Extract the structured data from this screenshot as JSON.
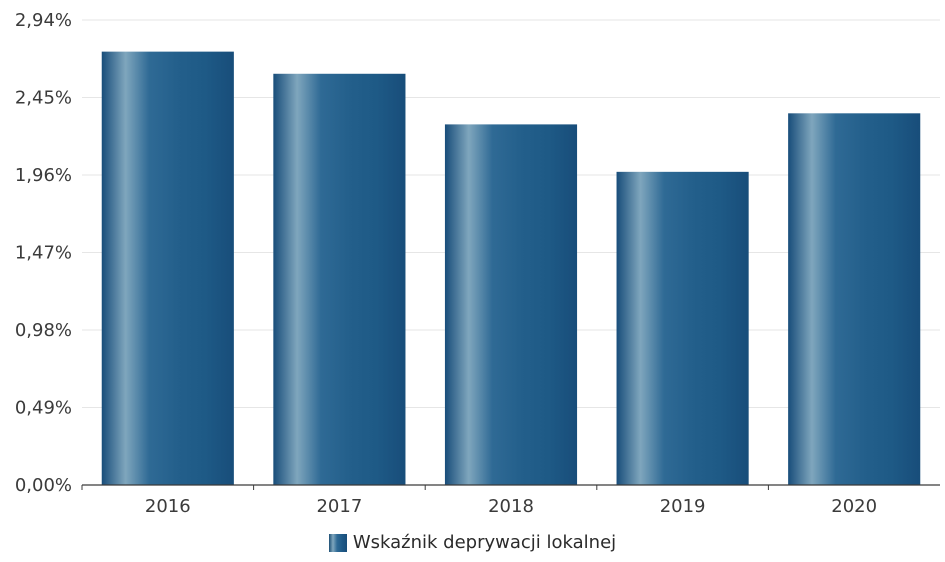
{
  "chart_data": {
    "type": "bar",
    "categories": [
      "2016",
      "2017",
      "2018",
      "2019",
      "2020"
    ],
    "series": [
      {
        "name": "Wskaźnik deprywacji lokalnej",
        "values": [
          2.74,
          2.6,
          2.28,
          1.98,
          2.35
        ]
      }
    ],
    "ylim": [
      0,
      2.94
    ],
    "yticks": [
      0,
      0.49,
      0.98,
      1.47,
      1.96,
      2.45,
      2.94
    ],
    "ytick_labels": [
      "0,00%",
      "0,49%",
      "0,98%",
      "1,47%",
      "1,96%",
      "2,45%",
      "2,94%"
    ],
    "grid": true,
    "legend_position": "bottom-center",
    "colors": {
      "bar_dark": "#184d7a",
      "bar_mid": "#2f6a95",
      "bar_light": "#7fa6bd",
      "axis": "#3b3b3b",
      "grid": "#e6e6e6"
    }
  }
}
